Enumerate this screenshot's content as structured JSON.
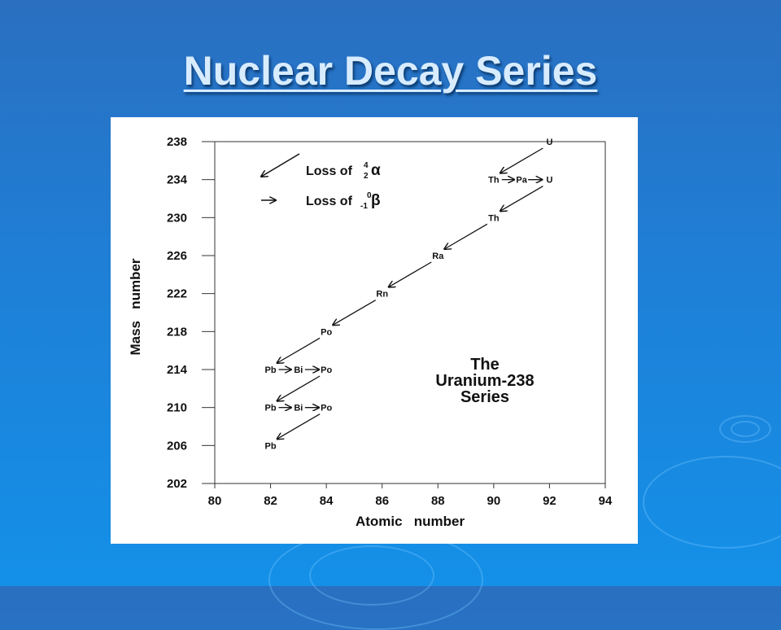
{
  "slide": {
    "title": "Nuclear Decay Series",
    "colors": {
      "background": "#1f7fd6",
      "title": "#d8ecff",
      "figure": "#ffffff"
    }
  },
  "chart_data": {
    "type": "scatter",
    "xlabel": "Atomic   number",
    "ylabel": "Mass   number",
    "xlim": [
      80,
      94
    ],
    "ylim": [
      202,
      238
    ],
    "x_ticks": [
      80,
      82,
      84,
      86,
      88,
      90,
      92,
      94
    ],
    "y_ticks": [
      238,
      234,
      230,
      226,
      222,
      218,
      214,
      210,
      206,
      202
    ],
    "legend": {
      "placement": "top-left",
      "alpha_label": "Loss of",
      "alpha_symbol": "α",
      "alpha_mass": "4",
      "alpha_charge": "2",
      "beta_label": "Loss of",
      "beta_symbol": "β",
      "beta_mass": "0",
      "beta_charge": "-1"
    },
    "annotation": [
      "The",
      "Uranium-238",
      "Series"
    ],
    "nuclides": [
      {
        "symbol": "U",
        "z": 92,
        "a": 238
      },
      {
        "symbol": "Th",
        "z": 90,
        "a": 234
      },
      {
        "symbol": "Pa",
        "z": 91,
        "a": 234
      },
      {
        "symbol": "U",
        "z": 92,
        "a": 234
      },
      {
        "symbol": "Th",
        "z": 90,
        "a": 230
      },
      {
        "symbol": "Ra",
        "z": 88,
        "a": 226
      },
      {
        "symbol": "Rn",
        "z": 86,
        "a": 222
      },
      {
        "symbol": "Po",
        "z": 84,
        "a": 218
      },
      {
        "symbol": "Pb",
        "z": 82,
        "a": 214
      },
      {
        "symbol": "Bi",
        "z": 83,
        "a": 214
      },
      {
        "symbol": "Po",
        "z": 84,
        "a": 214
      },
      {
        "symbol": "Pb",
        "z": 82,
        "a": 210
      },
      {
        "symbol": "Bi",
        "z": 83,
        "a": 210
      },
      {
        "symbol": "Po",
        "z": 84,
        "a": 210
      },
      {
        "symbol": "Pb",
        "z": 82,
        "a": 206
      }
    ],
    "decays": [
      {
        "type": "alpha",
        "from": [
          92,
          238
        ],
        "to": [
          90,
          234
        ]
      },
      {
        "type": "beta",
        "from": [
          90,
          234
        ],
        "to": [
          91,
          234
        ]
      },
      {
        "type": "beta",
        "from": [
          91,
          234
        ],
        "to": [
          92,
          234
        ]
      },
      {
        "type": "alpha",
        "from": [
          92,
          234
        ],
        "to": [
          90,
          230
        ]
      },
      {
        "type": "alpha",
        "from": [
          90,
          230
        ],
        "to": [
          88,
          226
        ]
      },
      {
        "type": "alpha",
        "from": [
          88,
          226
        ],
        "to": [
          86,
          222
        ]
      },
      {
        "type": "alpha",
        "from": [
          86,
          222
        ],
        "to": [
          84,
          218
        ]
      },
      {
        "type": "alpha",
        "from": [
          84,
          218
        ],
        "to": [
          82,
          214
        ]
      },
      {
        "type": "beta",
        "from": [
          82,
          214
        ],
        "to": [
          83,
          214
        ]
      },
      {
        "type": "beta",
        "from": [
          83,
          214
        ],
        "to": [
          84,
          214
        ]
      },
      {
        "type": "alpha",
        "from": [
          84,
          214
        ],
        "to": [
          82,
          210
        ]
      },
      {
        "type": "beta",
        "from": [
          82,
          210
        ],
        "to": [
          83,
          210
        ]
      },
      {
        "type": "beta",
        "from": [
          83,
          210
        ],
        "to": [
          84,
          210
        ]
      },
      {
        "type": "alpha",
        "from": [
          84,
          210
        ],
        "to": [
          82,
          206
        ]
      }
    ]
  }
}
